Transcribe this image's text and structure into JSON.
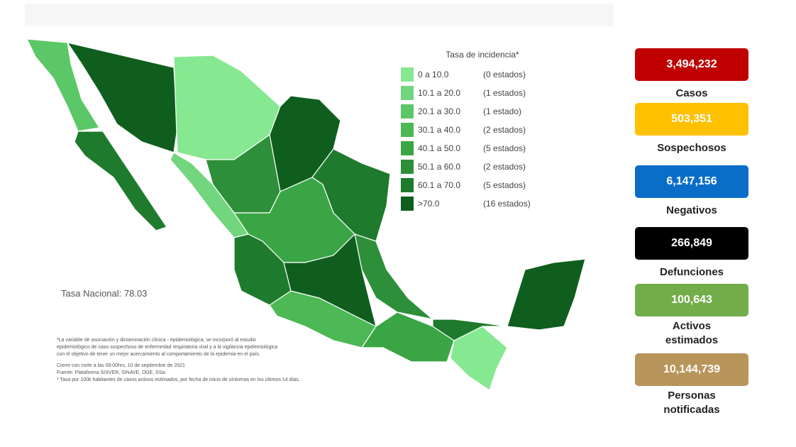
{
  "legend": {
    "title": "Tasa de incidencia*",
    "items": [
      {
        "range": "0  a  10.0",
        "count": "(0 estados)",
        "color": "#86e891"
      },
      {
        "range": "10.1 a 20.0",
        "count": "(1 estados)",
        "color": "#72d67e"
      },
      {
        "range": "20.1 a 30.0",
        "count": "(1 estado)",
        "color": "#5cc766"
      },
      {
        "range": "30.1 a 40.0",
        "count": "(2 estados)",
        "color": "#4cb954"
      },
      {
        "range": "40.1 a 50.0",
        "count": "(5 estados)",
        "color": "#3aa544"
      },
      {
        "range": "50.1 a 60.0",
        "count": "(2 estados)",
        "color": "#2d8f39"
      },
      {
        "range": "60.1 a 70.0",
        "count": "(5 estados)",
        "color": "#1e7a2c"
      },
      {
        "range": ">70.0",
        "count": "(16 estados)",
        "color": "#0f5e1e"
      }
    ]
  },
  "national_rate": "Tasa Nacional: 78.03",
  "footnotes": [
    "*La variable de asociación y dictaminación clínica - epidemiológica, se incorporó al estudio",
    "epidemiológico de caso sospechoso de enfermedad respiratoria viral y a la vigilancia epidemiológica",
    "con el objetivo de tener un mejor acercamiento al comportamiento de la epidemia en el país.",
    "Cierre con corte a las 09:00hrs, 10 de septiembre de 2021",
    "Fuente: Plataforma SISVER, SINAVE, DGE, SSa.",
    "* Tasa por 100k habitantes de casos activos estimados, por fecha de inicio de síntomas en los últimos 14 días."
  ],
  "stats": [
    {
      "value": "3,494,232",
      "label": "Casos"
    },
    {
      "value": "503,351",
      "label": "Sospechosos"
    },
    {
      "value": "6,147,156",
      "label": "Negativos"
    },
    {
      "value": "266,849",
      "label": "Defunciones"
    },
    {
      "value": "100,643",
      "label": "Activos estimados"
    },
    {
      "value": "10,144,739",
      "label": "Personas notificadas"
    }
  ]
}
